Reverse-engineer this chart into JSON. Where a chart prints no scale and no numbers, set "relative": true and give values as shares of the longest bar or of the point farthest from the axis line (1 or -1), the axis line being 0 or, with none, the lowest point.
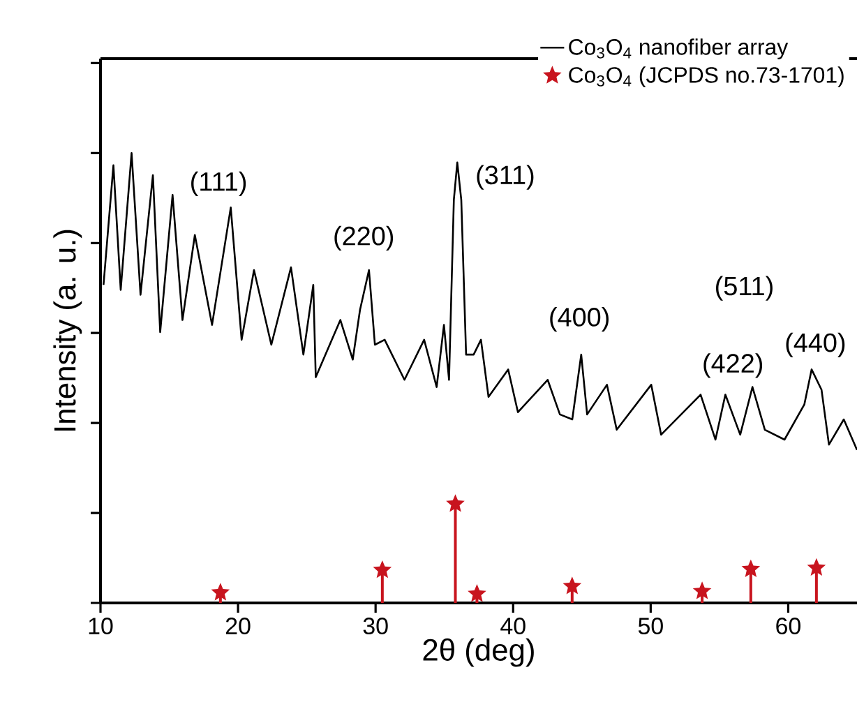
{
  "chart_data": {
    "type": "line",
    "relative": true,
    "xlabel": "2θ (deg)",
    "ylabel": "Intensity (a. u.)",
    "xlim": [
      10,
      65
    ],
    "xticks": [
      10,
      20,
      30,
      40,
      50,
      60
    ],
    "legend": "top right",
    "series": [
      {
        "name": "Co$_{3}$O$_{4}$ nanofiber array",
        "color": "#000000",
        "marker": "none",
        "x": [
          10.22,
          10.94,
          11.47,
          12.26,
          12.91,
          13.81,
          14.34,
          15.24,
          15.96,
          16.86,
          18.11,
          19.47,
          20.26,
          21.16,
          22.42,
          23.85,
          24.75,
          25.47,
          25.65,
          27.44,
          28.34,
          28.87,
          29.52,
          29.95,
          30.66,
          32.1,
          33.53,
          34.44,
          34.97,
          35.34,
          35.69,
          35.94,
          36.23,
          36.58,
          37.13,
          37.66,
          38.21,
          39.64,
          40.35,
          42.51,
          43.4,
          44.3,
          44.95,
          45.38,
          46.82,
          47.53,
          50.04,
          50.76,
          53.63,
          54.71,
          55.43,
          56.51,
          57.4,
          58.3,
          59.73,
          61.17,
          61.7,
          62.42,
          62.96,
          64.04,
          65.0
        ],
        "values": [
          0.707,
          0.973,
          0.696,
          1.0,
          0.685,
          0.951,
          0.602,
          0.907,
          0.629,
          0.818,
          0.618,
          0.879,
          0.585,
          0.74,
          0.574,
          0.746,
          0.552,
          0.707,
          0.502,
          0.629,
          0.541,
          0.652,
          0.74,
          0.574,
          0.585,
          0.496,
          0.585,
          0.48,
          0.618,
          0.496,
          0.896,
          0.979,
          0.896,
          0.552,
          0.552,
          0.585,
          0.458,
          0.519,
          0.424,
          0.496,
          0.419,
          0.408,
          0.552,
          0.419,
          0.485,
          0.385,
          0.485,
          0.374,
          0.463,
          0.363,
          0.463,
          0.374,
          0.48,
          0.385,
          0.363,
          0.441,
          0.519,
          0.474,
          0.352,
          0.408,
          0.34
        ]
      },
      {
        "name": "Co$_{3}$O$_{4}$ (JCPDS no.73-1701)",
        "type": "lollipop",
        "color": "#c8141e",
        "marker": "star",
        "x": [
          18.72,
          30.49,
          35.8,
          37.37,
          44.29,
          53.74,
          57.28,
          62.05
        ],
        "values": [
          0.023,
          0.073,
          0.22,
          0.02,
          0.037,
          0.026,
          0.075,
          0.078
        ]
      }
    ],
    "annotations": [
      "(111)",
      "(220)",
      "(311)",
      "(400)",
      "(422)",
      "(511)",
      "(440)"
    ]
  }
}
